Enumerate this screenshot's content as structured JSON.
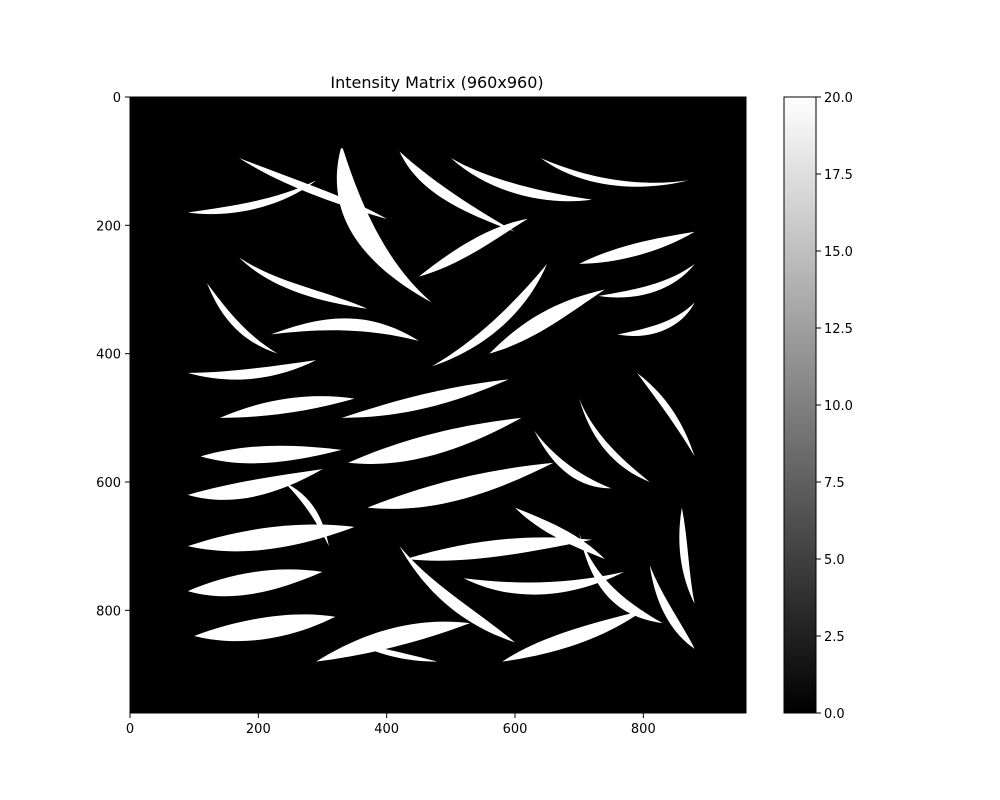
{
  "chart_data": {
    "type": "heatmap",
    "title": "Intensity Matrix (960x960)",
    "xlabel": "",
    "ylabel": "",
    "matrix_shape": [
      960,
      960
    ],
    "xlim": [
      0,
      960
    ],
    "ylim": [
      960,
      0
    ],
    "x_ticks": [
      0,
      200,
      400,
      600,
      800
    ],
    "x_tick_labels": [
      "0",
      "200",
      "400",
      "600",
      "800"
    ],
    "y_ticks": [
      0,
      200,
      400,
      600,
      800
    ],
    "y_tick_labels": [
      "0",
      "200",
      "400",
      "600",
      "800"
    ],
    "colormap": "gray",
    "color_min": "#000000",
    "color_max": "#ffffff",
    "vmin": 0.0,
    "vmax": 20.0,
    "colorbar_ticks": [
      0.0,
      2.5,
      5.0,
      7.5,
      10.0,
      12.5,
      15.0,
      17.5,
      20.0
    ],
    "colorbar_tick_labels": [
      "0.0",
      "2.5",
      "5.0",
      "7.5",
      "10.0",
      "12.5",
      "15.0",
      "17.5",
      "20.0"
    ],
    "background_value": 0.0,
    "pattern_value": 20.0,
    "pattern_region": {
      "x": [
        80,
        880
      ],
      "y": [
        80,
        880
      ]
    },
    "pattern_description": "abstract black-and-white swirling leaf/stripe shapes at value ~20 on a ~0 background"
  }
}
